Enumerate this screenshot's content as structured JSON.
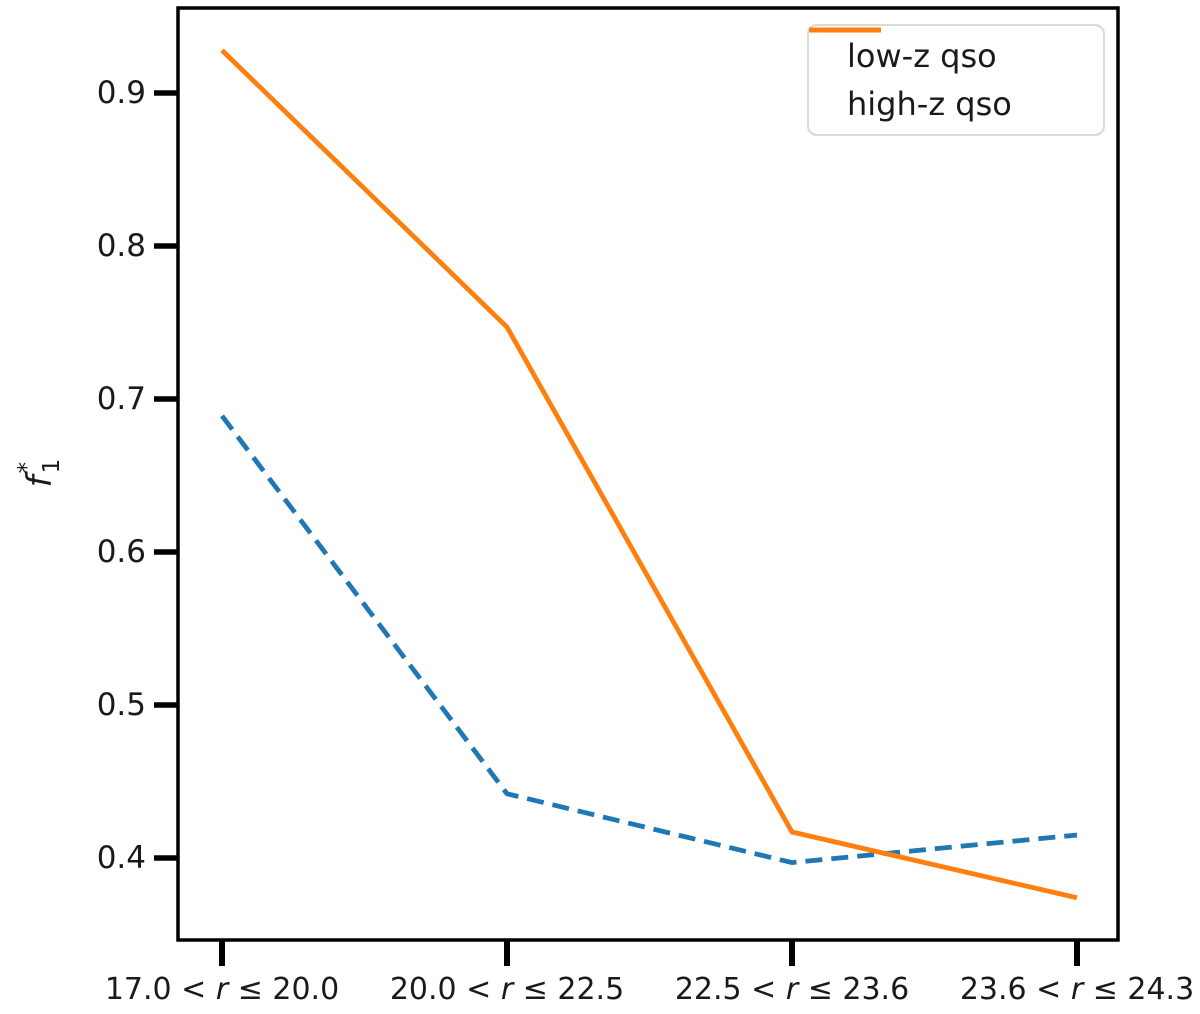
{
  "figure": {
    "background": "#ffffff",
    "axis_color": "#000000",
    "text_color": "#1a1a1a",
    "legend_border_color": "#d9d9d9"
  },
  "chart_data": {
    "type": "line",
    "title": "",
    "xlabel": "",
    "ylabel": "f1*",
    "ylabel_parts": {
      "base": "f",
      "sup": "*",
      "sub": "1"
    },
    "categories": [
      "17.0 < r ≤ 20.0",
      "20.0 < r ≤ 22.5",
      "22.5 < r ≤ 23.6",
      "23.6 < r ≤ 24.3"
    ],
    "y_ticks": [
      0.4,
      0.5,
      0.6,
      0.7,
      0.8,
      0.9
    ],
    "ylim": [
      0.3464,
      0.9556
    ],
    "grid": false,
    "legend_position": "upper right",
    "series": [
      {
        "name": "low-z qso",
        "color": "#1f77b4",
        "style": "dashed",
        "values": [
          0.689,
          0.442,
          0.397,
          0.415
        ]
      },
      {
        "name": "high-z qso",
        "color": "#ff7f0e",
        "style": "solid",
        "values": [
          0.928,
          0.747,
          0.417,
          0.374
        ]
      }
    ]
  }
}
